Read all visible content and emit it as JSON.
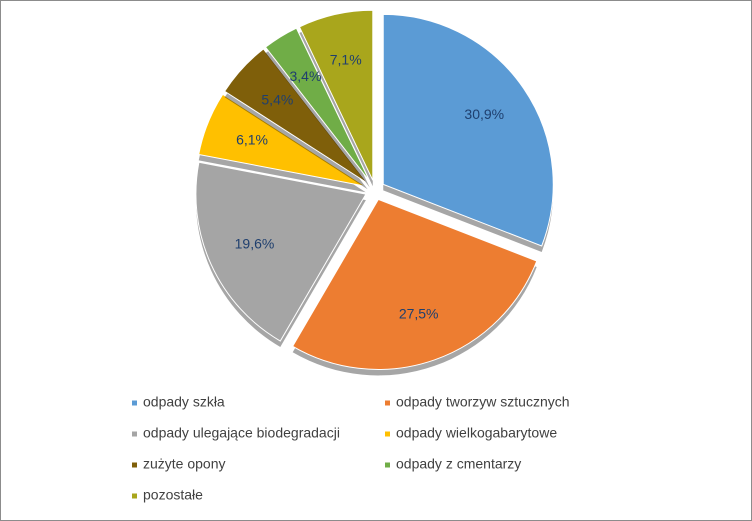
{
  "chart_data": {
    "type": "pie",
    "categories": [
      "odpady szkła",
      "odpady tworzyw sztucznych",
      "odpady ulegające biodegradacji",
      "odpady wielkogabarytowe",
      "zużyte opony",
      "odpady z cmentarzy",
      "pozostałe"
    ],
    "values": [
      30.9,
      27.5,
      19.6,
      6.1,
      5.4,
      3.4,
      7.1
    ],
    "value_labels": [
      "30,9%",
      "27,5%",
      "19,6%",
      "6,1%",
      "5,4%",
      "3,4%",
      "7,1%"
    ],
    "colors": [
      "#5b9bd5",
      "#ed7d31",
      "#a5a5a5",
      "#ffc000",
      "#7f5f0a",
      "#70ad47",
      "#a9a61c"
    ],
    "legend": "bottom"
  }
}
